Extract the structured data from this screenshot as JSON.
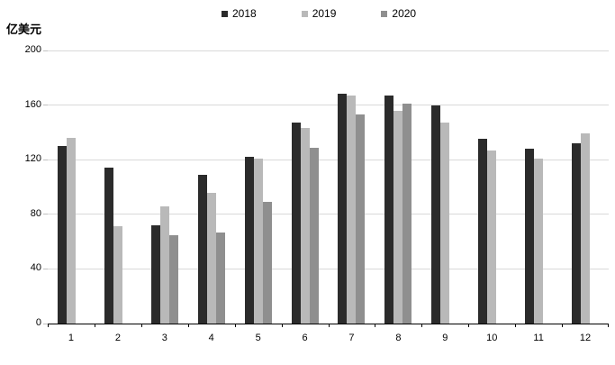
{
  "chart_data": {
    "type": "bar",
    "title": "",
    "unit_label": "亿美元",
    "categories": [
      "1",
      "2",
      "3",
      "4",
      "5",
      "6",
      "7",
      "8",
      "9",
      "10",
      "11",
      "12"
    ],
    "series": [
      {
        "name": "2018",
        "color": "#2b2b2b",
        "values": [
          130,
          114,
          72,
          109,
          122,
          147,
          168,
          167,
          160,
          135,
          128,
          132
        ]
      },
      {
        "name": "2019",
        "color": "#b9b9b9",
        "values": [
          136,
          71,
          86,
          96,
          121,
          143,
          167,
          156,
          147,
          127,
          121,
          139
        ]
      },
      {
        "name": "2020",
        "color": "#8f8f8f",
        "values": [
          null,
          null,
          65,
          67,
          89,
          129,
          153,
          161,
          null,
          null,
          null,
          null
        ]
      }
    ],
    "ylim": [
      0,
      200
    ],
    "yticks": [
      0,
      40,
      80,
      120,
      160,
      200
    ],
    "grid": true,
    "legend_position": "top",
    "gridline_color": "#d9d9d9",
    "tick_color": "#c0c0c0",
    "axis_color": "#000000"
  }
}
